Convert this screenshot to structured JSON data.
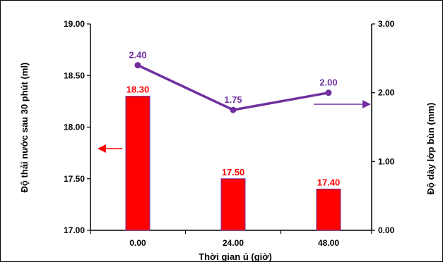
{
  "colors": {
    "bar": "#ff0000",
    "bar_border": "#7030a0",
    "line": "#7030a0",
    "bar_label": "#ff0000",
    "line_label": "#7030a0"
  },
  "chart_data": {
    "type": "bar",
    "title": "",
    "xlabel": "Thời gian ủ (giờ)",
    "ylabel": "Độ thải nước sau 30 phút (ml)",
    "y2label": "Độ dày lớp bùn (mm)",
    "categories": [
      "0.00",
      "24.00",
      "48.00"
    ],
    "ylim": [
      17.0,
      19.0
    ],
    "y2lim": [
      0.0,
      3.0
    ],
    "yticks": [
      "17.00",
      "17.50",
      "18.00",
      "18.50",
      "19.00"
    ],
    "y2ticks": [
      "0.00",
      "1.00",
      "2.00",
      "3.00"
    ],
    "grid": false,
    "series": [
      {
        "type": "bar",
        "axis": "left",
        "values": [
          18.3,
          17.5,
          17.4
        ],
        "labels": [
          "18.30",
          "17.50",
          "17.40"
        ]
      },
      {
        "type": "line",
        "axis": "right",
        "values": [
          2.4,
          1.75,
          2.0
        ],
        "labels": [
          "2.40",
          "1.75",
          "2.00"
        ]
      }
    ],
    "annotations": [
      {
        "kind": "arrow",
        "direction": "left",
        "meaning": "bars use left axis",
        "color": "#ff0000"
      },
      {
        "kind": "arrow",
        "direction": "right",
        "meaning": "line uses right axis",
        "color": "#7030a0"
      }
    ]
  }
}
